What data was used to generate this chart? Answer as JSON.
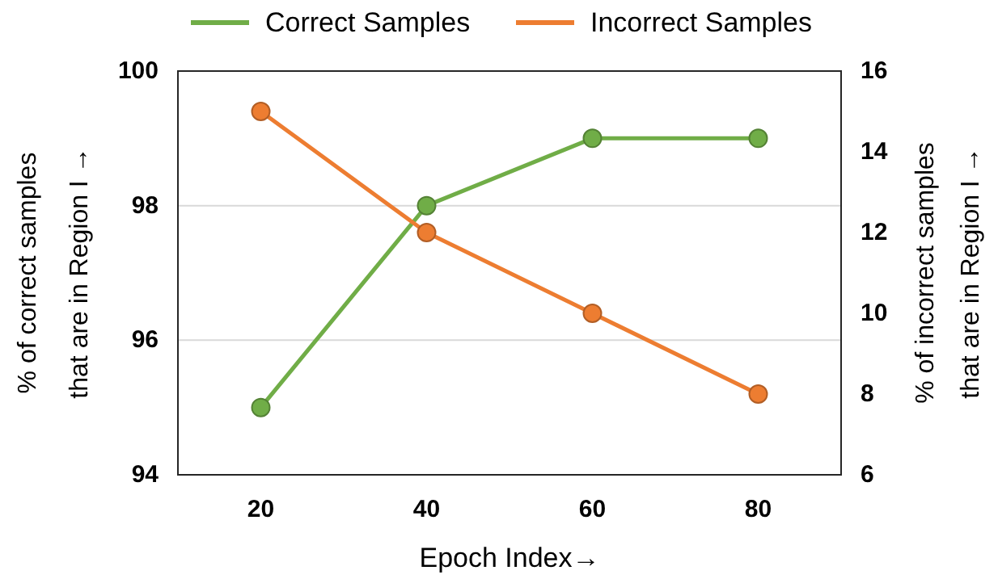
{
  "chart_data": {
    "type": "line",
    "categories": [
      "20",
      "40",
      "60",
      "80"
    ],
    "xlabel": "Epoch Index→",
    "ylabel": "% of correct samples\nthat are in Region I →",
    "y2label": "% of incorrect samples\nthat are in Region I →",
    "series": [
      {
        "name": "Correct Samples",
        "color": "#70ad47",
        "values": [
          95,
          98,
          99,
          99
        ]
      },
      {
        "name": "Incorrect Samples",
        "color": "#ed7d31",
        "values": [
          15,
          12,
          10,
          8
        ],
        "axis": "y2"
      }
    ],
    "ylim": [
      94,
      100
    ],
    "yticks": [
      94,
      96,
      98,
      100
    ],
    "y2lim": [
      6,
      16
    ],
    "y2ticks": [
      6,
      8,
      10,
      12,
      14,
      16
    ],
    "grid": "y",
    "legend": "top",
    "marker": "circle",
    "line_style": "solid"
  }
}
